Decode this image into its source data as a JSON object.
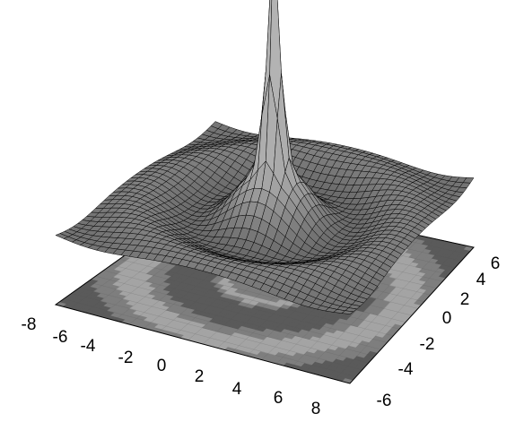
{
  "chart_data": {
    "type": "surface",
    "title": "",
    "xlabel": "",
    "ylabel": "",
    "zlabel": "",
    "x_ticks": [
      "-8",
      "-6",
      "-4",
      "-2",
      "0",
      "2",
      "4",
      "6",
      "8"
    ],
    "y_ticks": [
      "-6",
      "-4",
      "-2",
      "0",
      "2",
      "4",
      "6"
    ],
    "xlim": [
      -8,
      8
    ],
    "ylim": [
      -8,
      8
    ],
    "function": "sinc-like radial ripple: z = sin(r)/r",
    "surface_samples": {
      "r": [
        0,
        1,
        2,
        3,
        4,
        5,
        6,
        7,
        8,
        9,
        10
      ],
      "z": [
        1.0,
        0.84,
        0.45,
        0.05,
        -0.19,
        -0.19,
        -0.05,
        0.09,
        0.12,
        0.05,
        -0.05
      ]
    },
    "base_contour_projection": true,
    "grid": false,
    "colors": {
      "surface": "#8a8a8a",
      "contour_dark": "#5a5a5a",
      "contour_mid": "#7e7e7e",
      "contour_light": "#a4a4a4",
      "lines": "#000000"
    }
  }
}
